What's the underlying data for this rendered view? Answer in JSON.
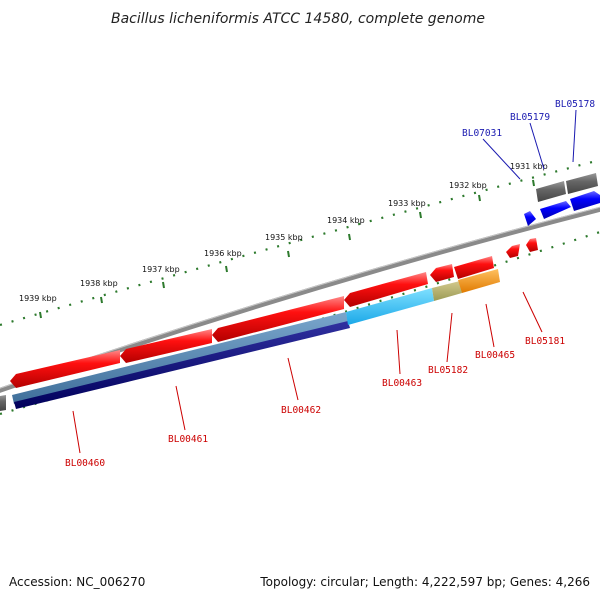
{
  "title": "Bacillus licheniformis ATCC 14580, complete genome",
  "footer": {
    "accession": "Accession: NC_006270",
    "summary": "Topology: circular; Length: 4,222,597 bp; Genes: 4,266"
  },
  "ticks": [
    {
      "label": "1931 kbp"
    },
    {
      "label": "1932 kbp"
    },
    {
      "label": "1933 kbp"
    },
    {
      "label": "1934 kbp"
    },
    {
      "label": "1935 kbp"
    },
    {
      "label": "1936 kbp"
    },
    {
      "label": "1937 kbp"
    },
    {
      "label": "1938 kbp"
    },
    {
      "label": "1939 kbp"
    }
  ],
  "genes": [
    {
      "label": "BL00460"
    },
    {
      "label": "BL00461"
    },
    {
      "label": "BL00462"
    },
    {
      "label": "BL00463"
    },
    {
      "label": "BL05182"
    },
    {
      "label": "BL00465"
    },
    {
      "label": "BL05181"
    },
    {
      "label": "BL07031"
    },
    {
      "label": "BL05179"
    },
    {
      "label": "BL05178"
    }
  ],
  "colors": {
    "backbone": "#888888",
    "forward_gene": "#ff0000",
    "reverse_gene": "#0000ff",
    "tick": "#2d7a2d",
    "label_red": "#cc0000",
    "label_blue": "#1a1ab0"
  }
}
